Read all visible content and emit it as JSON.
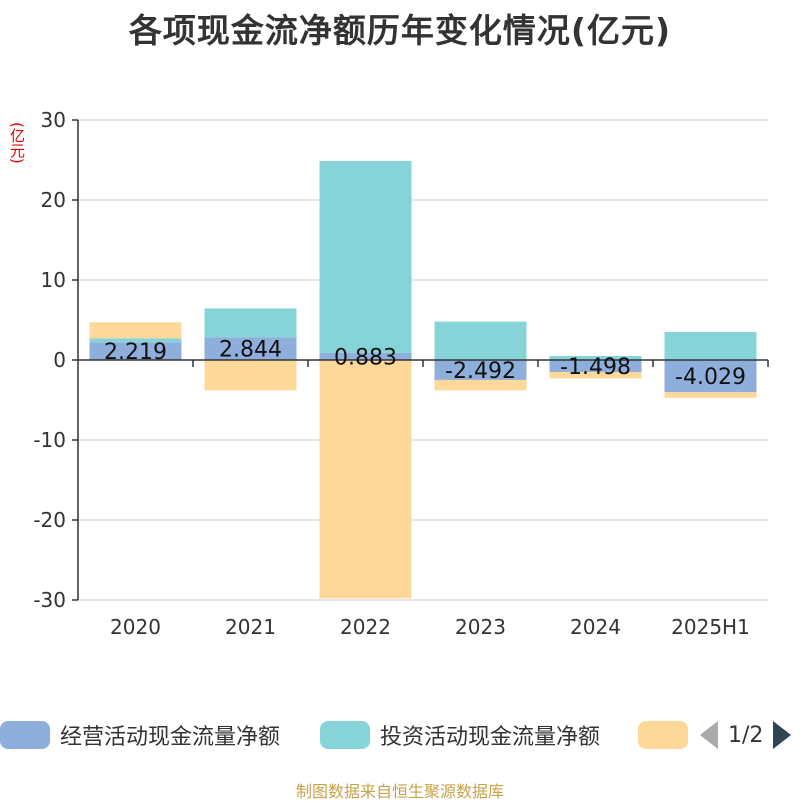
{
  "title": "各项现金流净额历年变化情况(亿元)",
  "unit_label": "(亿元)",
  "legend": {
    "items": [
      {
        "label": "经营活动现金流量净额",
        "color": "#8eaedc"
      },
      {
        "label": "投资活动现金流量净额",
        "color": "#87d4d8"
      },
      {
        "label": "",
        "color": "#fdd899"
      }
    ],
    "page_indicator": "1/2"
  },
  "footer": "制图数据来自恒生聚源数据库",
  "chart_data": {
    "type": "bar",
    "stacked": true,
    "categories": [
      "2020",
      "2021",
      "2022",
      "2023",
      "2024",
      "2025H1"
    ],
    "ylim": [
      -30,
      30
    ],
    "yticks": [
      30,
      20,
      10,
      0,
      -10,
      -20,
      -30
    ],
    "grid": true,
    "series": [
      {
        "name": "经营活动现金流量净额",
        "color": "#8eaedc",
        "values": [
          2.219,
          2.844,
          0.883,
          -2.492,
          -1.498,
          -4.029
        ],
        "labels": [
          "2.219",
          "2.844",
          "0.883",
          "-2.492",
          "-1.498",
          "-4.029"
        ]
      },
      {
        "name": "投资活动现金流量净额",
        "color": "#87d4d8",
        "values": [
          0.5,
          3.6,
          24.0,
          4.8,
          0.5,
          3.5
        ]
      },
      {
        "color": "#fdd899",
        "values": [
          2.0,
          -3.8,
          -29.8,
          -1.3,
          -0.8,
          -0.7
        ]
      }
    ]
  }
}
